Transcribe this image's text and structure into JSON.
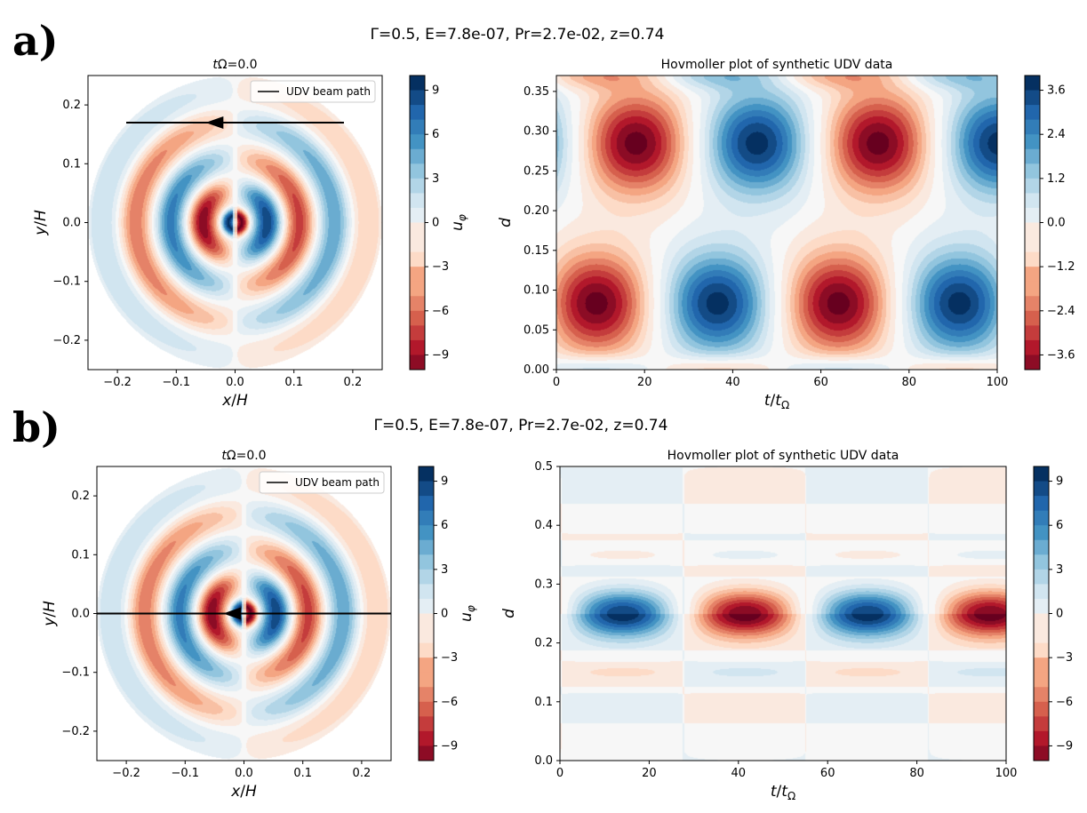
{
  "panels": [
    {
      "id": "a",
      "label": "a)",
      "suptitle": "Γ=0.5, E=7.8e-07, Pr=2.7e-02, z=0.74",
      "snapshot": {
        "title": "tΩ=0.0",
        "title_italic": "t",
        "title_rest": "Ω=0.0",
        "xlabel": "x/H",
        "ylabel": "y/H",
        "xticks": [
          -0.2,
          -0.1,
          0.0,
          0.1,
          0.2
        ],
        "xtick_labels": [
          "−0.2",
          "−0.1",
          "0.0",
          "0.1",
          "0.2"
        ],
        "yticks": [
          -0.2,
          -0.1,
          0.0,
          0.1,
          0.2
        ],
        "ytick_labels": [
          "−0.2",
          "−0.1",
          "0.0",
          "0.1",
          "0.2"
        ],
        "xlim": [
          -0.25,
          0.25
        ],
        "ylim": [
          -0.25,
          0.25
        ],
        "legend": "UDV beam path",
        "beam": {
          "x_start": 0.185,
          "x_end": -0.185,
          "y": 0.17,
          "arrow_x": -0.035
        },
        "colorbar": {
          "label": "uφ",
          "ticks": [
            9,
            6,
            3,
            0,
            -3,
            -6,
            -9
          ],
          "tick_labels": [
            "9",
            "6",
            "3",
            "0",
            "−3",
            "−6",
            "−9"
          ],
          "range": [
            -10,
            10
          ]
        }
      },
      "hovmoller": {
        "title": "Hovmoller plot of synthetic UDV data",
        "xlabel": "t/tΩ",
        "ylabel": "d",
        "xticks": [
          0,
          20,
          40,
          60,
          80,
          100
        ],
        "xtick_labels": [
          "0",
          "20",
          "40",
          "60",
          "80",
          "100"
        ],
        "yticks": [
          0.0,
          0.05,
          0.1,
          0.15,
          0.2,
          0.25,
          0.3,
          0.35
        ],
        "ytick_labels": [
          "0.00",
          "0.05",
          "0.10",
          "0.15",
          "0.20",
          "0.25",
          "0.30",
          "0.35"
        ],
        "xlim": [
          0,
          100
        ],
        "ylim": [
          0,
          0.37
        ],
        "colorbar": {
          "ticks": [
            3.6,
            2.4,
            1.2,
            0.0,
            -1.2,
            -2.4,
            -3.6
          ],
          "tick_labels": [
            "3.6",
            "2.4",
            "1.2",
            "0.0",
            "−1.2",
            "−2.4",
            "−3.6"
          ],
          "range": [
            -4,
            4
          ]
        }
      }
    },
    {
      "id": "b",
      "label": "b)",
      "suptitle": "Γ=0.5, E=7.8e-07, Pr=2.7e-02, z=0.74",
      "snapshot": {
        "title": "tΩ=0.0",
        "title_italic": "t",
        "title_rest": "Ω=0.0",
        "xlabel": "x/H",
        "ylabel": "y/H",
        "xticks": [
          -0.2,
          -0.1,
          0.0,
          0.1,
          0.2
        ],
        "xtick_labels": [
          "−0.2",
          "−0.1",
          "0.0",
          "0.1",
          "0.2"
        ],
        "yticks": [
          -0.2,
          -0.1,
          0.0,
          0.1,
          0.2
        ],
        "ytick_labels": [
          "−0.2",
          "−0.1",
          "0.0",
          "0.1",
          "0.2"
        ],
        "xlim": [
          -0.25,
          0.25
        ],
        "ylim": [
          -0.25,
          0.25
        ],
        "legend": "UDV beam path",
        "beam": {
          "x_start": 0.25,
          "x_end": -0.25,
          "y": 0.0,
          "arrow_x": -0.02
        },
        "colorbar": {
          "label": "uφ",
          "ticks": [
            9,
            6,
            3,
            0,
            -3,
            -6,
            -9
          ],
          "tick_labels": [
            "9",
            "6",
            "3",
            "0",
            "−3",
            "−6",
            "−9"
          ],
          "range": [
            -10,
            10
          ]
        }
      },
      "hovmoller": {
        "title": "Hovmoller plot of synthetic UDV data",
        "xlabel": "t/tΩ",
        "ylabel": "d",
        "xticks": [
          0,
          20,
          40,
          60,
          80,
          100
        ],
        "xtick_labels": [
          "0",
          "20",
          "40",
          "60",
          "80",
          "100"
        ],
        "yticks": [
          0.0,
          0.1,
          0.2,
          0.3,
          0.4,
          0.5
        ],
        "ytick_labels": [
          "0.0",
          "0.1",
          "0.2",
          "0.3",
          "0.4",
          "0.5"
        ],
        "xlim": [
          0,
          100
        ],
        "ylim": [
          0,
          0.5
        ],
        "colorbar": {
          "ticks": [
            9,
            6,
            3,
            0,
            -3,
            -6,
            -9
          ],
          "tick_labels": [
            "9",
            "6",
            "3",
            "0",
            "−3",
            "−6",
            "−9"
          ],
          "range": [
            -10,
            10
          ]
        }
      }
    }
  ],
  "chart_data": [
    {
      "type": "heatmap",
      "panel": "a-left",
      "title": "tΩ=0.0",
      "xlabel": "x/H",
      "ylabel": "y/H",
      "xlim": [
        -0.25,
        0.25
      ],
      "ylim": [
        -0.25,
        0.25
      ],
      "colorbar_label": "uφ",
      "value_range": [
        -10,
        10
      ],
      "ring_centers_x": [
        0.05,
        0.12,
        0.19
      ],
      "peak_values": [
        10,
        6,
        4
      ],
      "legend": [
        "UDV beam path"
      ]
    },
    {
      "type": "heatmap",
      "panel": "a-right",
      "title": "Hovmoller plot of synthetic UDV data",
      "xlabel": "t/tΩ",
      "ylabel": "d",
      "xlim": [
        0,
        100
      ],
      "ylim": [
        0,
        0.37
      ],
      "value_range": [
        -4,
        4
      ],
      "extrema": [
        {
          "t": 9,
          "d": 0.083,
          "value": -4
        },
        {
          "t": 37,
          "d": 0.083,
          "value": 4
        },
        {
          "t": 64,
          "d": 0.083,
          "value": -4
        },
        {
          "t": 92,
          "d": 0.083,
          "value": 4
        },
        {
          "t": 18,
          "d": 0.285,
          "value": -4
        },
        {
          "t": 46,
          "d": 0.285,
          "value": 4
        },
        {
          "t": 73,
          "d": 0.285,
          "value": -4
        },
        {
          "t": 100,
          "d": 0.285,
          "value": 4
        }
      ]
    },
    {
      "type": "heatmap",
      "panel": "b-left",
      "title": "tΩ=0.0",
      "xlabel": "x/H",
      "ylabel": "y/H",
      "xlim": [
        -0.25,
        0.25
      ],
      "ylim": [
        -0.25,
        0.25
      ],
      "colorbar_label": "uφ",
      "value_range": [
        -10,
        10
      ],
      "legend": [
        "UDV beam path"
      ]
    },
    {
      "type": "heatmap",
      "panel": "b-right",
      "title": "Hovmoller plot of synthetic UDV data",
      "xlabel": "t/tΩ",
      "ylabel": "d",
      "xlim": [
        0,
        100
      ],
      "ylim": [
        0,
        0.5
      ],
      "value_range": [
        -10,
        10
      ],
      "extrema": [
        {
          "t": 14,
          "d": 0.25,
          "value": 9
        },
        {
          "t": 41,
          "d": 0.25,
          "value": -9
        },
        {
          "t": 68,
          "d": 0.25,
          "value": 9
        },
        {
          "t": 96,
          "d": 0.25,
          "value": -9
        }
      ]
    }
  ],
  "colors": {
    "cmap": [
      "#67001f",
      "#b2182b",
      "#d6604d",
      "#f4a582",
      "#fddbc7",
      "#f7f7f7",
      "#d1e5f0",
      "#92c5de",
      "#4393c3",
      "#2166ac",
      "#053061"
    ]
  }
}
